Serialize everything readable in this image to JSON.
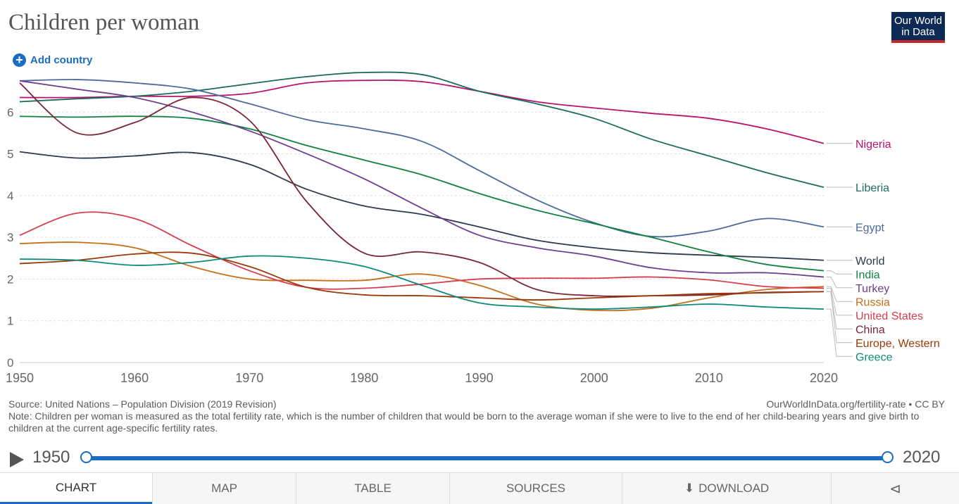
{
  "header": {
    "title": "Children per woman",
    "add_country": "Add country",
    "logo_line1": "Our World",
    "logo_line2": "in Data"
  },
  "footer": {
    "source": "Source: United Nations – Population Division (2019 Revision)",
    "note": "Note: Children per woman is measured as the total fertility rate, which is the number of children that would be born to the average woman if she were to live to the end of her child-bearing years and give birth to children at the current age-specific fertility rates.",
    "url": "OurWorldInData.org/fertility-rate • CC BY"
  },
  "timeline": {
    "start": "1950",
    "end": "2020"
  },
  "tabs": {
    "chart": "CHART",
    "map": "MAP",
    "table": "TABLE",
    "sources": "SOURCES",
    "download": "DOWNLOAD"
  },
  "icons": {
    "play": "play-icon",
    "add": "plus-circle-icon",
    "download": "download-icon",
    "share": "share-icon"
  },
  "chart_data": {
    "type": "line",
    "title": "Children per woman",
    "xlabel": "",
    "ylabel": "",
    "xlim": [
      1950,
      2020
    ],
    "ylim": [
      0,
      7
    ],
    "x_ticks": [
      1950,
      1960,
      1970,
      1980,
      1990,
      2000,
      2010,
      2020
    ],
    "y_ticks": [
      0,
      1,
      2,
      3,
      4,
      5,
      6
    ],
    "grid": "horizontal dashed",
    "legend": "right, labels at line ends",
    "x": [
      1950,
      1955,
      1960,
      1965,
      1970,
      1975,
      1980,
      1985,
      1990,
      1995,
      2000,
      2005,
      2010,
      2015,
      2020
    ],
    "series": [
      {
        "name": "Nigeria",
        "color": "#b8136f",
        "values": [
          6.35,
          6.35,
          6.38,
          6.38,
          6.45,
          6.7,
          6.76,
          6.73,
          6.5,
          6.25,
          6.1,
          5.97,
          5.85,
          5.6,
          5.25
        ]
      },
      {
        "name": "Liberia",
        "color": "#1c6b5a",
        "values": [
          6.25,
          6.32,
          6.38,
          6.5,
          6.68,
          6.85,
          6.95,
          6.9,
          6.5,
          6.2,
          5.85,
          5.35,
          4.95,
          4.55,
          4.2
        ]
      },
      {
        "name": "Egypt",
        "color": "#4c6a9c",
        "values": [
          6.75,
          6.78,
          6.7,
          6.55,
          6.2,
          5.82,
          5.6,
          5.3,
          4.6,
          3.9,
          3.35,
          3.02,
          3.15,
          3.45,
          3.25
        ]
      },
      {
        "name": "World",
        "color": "#2f3a4d",
        "values": [
          5.05,
          4.9,
          4.95,
          5.03,
          4.75,
          4.15,
          3.75,
          3.55,
          3.25,
          2.93,
          2.75,
          2.63,
          2.57,
          2.52,
          2.45
        ]
      },
      {
        "name": "India",
        "color": "#0f8241",
        "values": [
          5.9,
          5.88,
          5.9,
          5.85,
          5.6,
          5.2,
          4.85,
          4.5,
          4.05,
          3.65,
          3.33,
          3.0,
          2.65,
          2.35,
          2.2
        ]
      },
      {
        "name": "Turkey",
        "color": "#6d3e91",
        "values": [
          6.75,
          6.55,
          6.35,
          6.0,
          5.55,
          5.0,
          4.4,
          3.7,
          3.05,
          2.75,
          2.55,
          2.27,
          2.15,
          2.15,
          2.05
        ]
      },
      {
        "name": "Russia",
        "color": "#c5701c",
        "values": [
          2.85,
          2.88,
          2.75,
          2.3,
          2.0,
          1.97,
          1.97,
          2.12,
          1.85,
          1.4,
          1.25,
          1.3,
          1.55,
          1.75,
          1.82
        ]
      },
      {
        "name": "United States",
        "color": "#d73c50",
        "values": [
          3.05,
          3.58,
          3.45,
          2.8,
          2.2,
          1.8,
          1.78,
          1.88,
          2.0,
          2.02,
          2.02,
          2.05,
          1.98,
          1.82,
          1.78
        ]
      },
      {
        "name": "China",
        "color": "#7a2636",
        "values": [
          6.7,
          5.5,
          5.75,
          6.35,
          5.8,
          3.85,
          2.62,
          2.65,
          2.4,
          1.75,
          1.6,
          1.6,
          1.62,
          1.68,
          1.7
        ]
      },
      {
        "name": "Europe, Western",
        "color": "#9a3a0a",
        "values": [
          2.37,
          2.45,
          2.6,
          2.62,
          2.3,
          1.8,
          1.62,
          1.6,
          1.55,
          1.5,
          1.55,
          1.6,
          1.65,
          1.67,
          1.7
        ]
      },
      {
        "name": "Greece",
        "color": "#0d8b7a",
        "values": [
          2.48,
          2.45,
          2.33,
          2.4,
          2.55,
          2.5,
          2.3,
          1.85,
          1.43,
          1.33,
          1.28,
          1.33,
          1.4,
          1.33,
          1.28
        ]
      }
    ]
  }
}
